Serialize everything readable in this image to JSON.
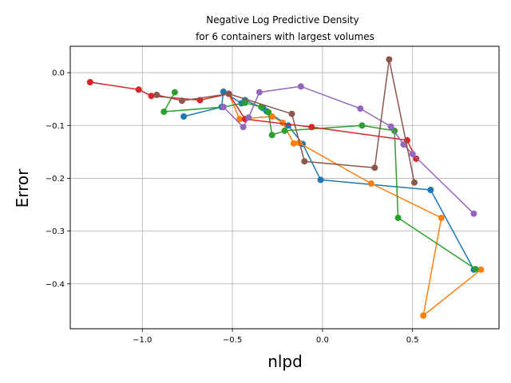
{
  "chart_data": {
    "type": "line",
    "title_lines": [
      "Negative Log Predictive Density",
      "for 6 containers with largest volumes"
    ],
    "xlabel": "nlpd",
    "ylabel": "Error",
    "xlim": [
      -1.4,
      0.98
    ],
    "ylim": [
      -0.485,
      0.05
    ],
    "x_ticks": [
      -1.0,
      -0.5,
      0.0,
      0.5
    ],
    "x_tick_labels": [
      "−1.0",
      "−0.5",
      "0.0",
      "0.5"
    ],
    "y_ticks": [
      0.0,
      -0.1,
      -0.2,
      -0.3,
      -0.4
    ],
    "y_tick_labels": [
      "0.0",
      "−0.1",
      "−0.2",
      "−0.3",
      "−0.4"
    ],
    "grid": true,
    "series": [
      {
        "color": "#1f77b4",
        "points": [
          [
            -0.77,
            -0.083
          ],
          [
            -0.56,
            -0.065
          ],
          [
            -0.55,
            -0.036
          ],
          [
            -0.45,
            -0.058
          ],
          [
            -0.43,
            -0.052
          ],
          [
            -0.33,
            -0.067
          ],
          [
            -0.31,
            -0.073
          ],
          [
            -0.19,
            -0.1
          ],
          [
            -0.11,
            -0.135
          ],
          [
            -0.01,
            -0.203
          ],
          [
            0.6,
            -0.222
          ],
          [
            0.84,
            -0.373
          ]
        ]
      },
      {
        "color": "#ff7f0e",
        "points": [
          [
            -0.52,
            -0.04
          ],
          [
            -0.46,
            -0.088
          ],
          [
            -0.28,
            -0.083
          ],
          [
            -0.22,
            -0.095
          ],
          [
            -0.16,
            -0.134
          ],
          [
            -0.13,
            -0.133
          ],
          [
            0.27,
            -0.21
          ],
          [
            0.66,
            -0.275
          ],
          [
            0.56,
            -0.46
          ],
          [
            0.88,
            -0.373
          ]
        ]
      },
      {
        "color": "#2ca02c",
        "points": [
          [
            -0.82,
            -0.037
          ],
          [
            -0.88,
            -0.074
          ],
          [
            -0.55,
            -0.065
          ],
          [
            -0.43,
            -0.057
          ],
          [
            -0.34,
            -0.065
          ],
          [
            -0.3,
            -0.075
          ],
          [
            -0.28,
            -0.118
          ],
          [
            -0.21,
            -0.11
          ],
          [
            0.22,
            -0.1
          ],
          [
            0.4,
            -0.11
          ],
          [
            0.42,
            -0.275
          ],
          [
            0.85,
            -0.372
          ]
        ]
      },
      {
        "color": "#d62728",
        "points": [
          [
            -1.29,
            -0.018
          ],
          [
            -1.02,
            -0.032
          ],
          [
            -0.95,
            -0.044
          ],
          [
            -0.68,
            -0.052
          ],
          [
            -0.52,
            -0.04
          ],
          [
            -0.43,
            -0.088
          ],
          [
            -0.06,
            -0.103
          ],
          [
            0.47,
            -0.128
          ],
          [
            0.52,
            -0.163
          ]
        ]
      },
      {
        "color": "#9467bd",
        "points": [
          [
            -0.55,
            -0.065
          ],
          [
            -0.44,
            -0.103
          ],
          [
            -0.41,
            -0.085
          ],
          [
            -0.35,
            -0.037
          ],
          [
            -0.12,
            -0.026
          ],
          [
            0.21,
            -0.068
          ],
          [
            0.38,
            -0.102
          ],
          [
            0.45,
            -0.136
          ],
          [
            0.5,
            -0.154
          ],
          [
            0.84,
            -0.267
          ]
        ]
      },
      {
        "color": "#8c564b",
        "points": [
          [
            -0.92,
            -0.042
          ],
          [
            -0.78,
            -0.053
          ],
          [
            -0.52,
            -0.04
          ],
          [
            -0.17,
            -0.078
          ],
          [
            -0.1,
            -0.168
          ],
          [
            0.29,
            -0.18
          ],
          [
            0.37,
            0.025
          ],
          [
            0.51,
            -0.208
          ]
        ]
      }
    ]
  }
}
